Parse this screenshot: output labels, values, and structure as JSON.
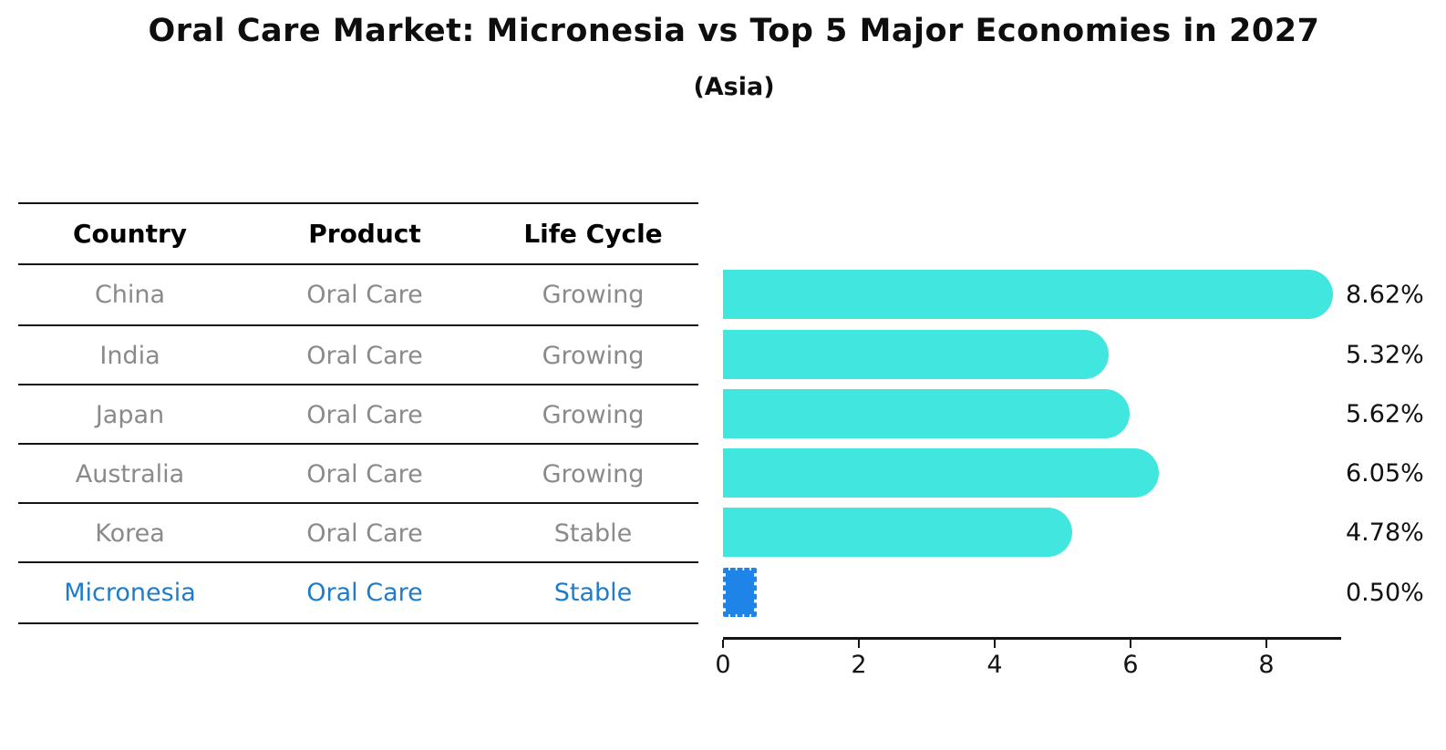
{
  "title": "Oral Care Market: Micronesia vs Top 5 Major Economies in 2027",
  "subtitle": "(Asia)",
  "table": {
    "headers": [
      "Country",
      "Product",
      "Life Cycle"
    ],
    "rows": [
      {
        "country": "China",
        "product": "Oral Care",
        "life_cycle": "Growing"
      },
      {
        "country": "India",
        "product": "Oral Care",
        "life_cycle": "Growing"
      },
      {
        "country": "Japan",
        "product": "Oral Care",
        "life_cycle": "Growing"
      },
      {
        "country": "Australia",
        "product": "Oral Care",
        "life_cycle": "Growing"
      },
      {
        "country": "Korea",
        "product": "Oral Care",
        "life_cycle": "Stable"
      },
      {
        "country": "Micronesia",
        "product": "Oral Care",
        "life_cycle": "Stable"
      }
    ]
  },
  "chart_data": {
    "type": "bar",
    "orientation": "horizontal",
    "categories": [
      "China",
      "India",
      "Japan",
      "Australia",
      "Korea",
      "Micronesia"
    ],
    "values": [
      8.62,
      5.32,
      5.62,
      6.05,
      4.78,
      0.5
    ],
    "value_labels": [
      "8.62%",
      "5.32%",
      "5.62%",
      "6.05%",
      "4.78%",
      "0.50%"
    ],
    "highlight_category": "Micronesia",
    "xticks": [
      0,
      2,
      4,
      6,
      8
    ],
    "xlim": [
      0,
      9.08
    ],
    "grid": "off",
    "legend": "none",
    "colors": {
      "bar": "#41E6DF",
      "highlight_bar": "#1E84E8",
      "highlight_text": "#1E7CC9",
      "row_text": "#8A8A8A",
      "header_text": "#000000",
      "label_text": "#111111"
    }
  }
}
